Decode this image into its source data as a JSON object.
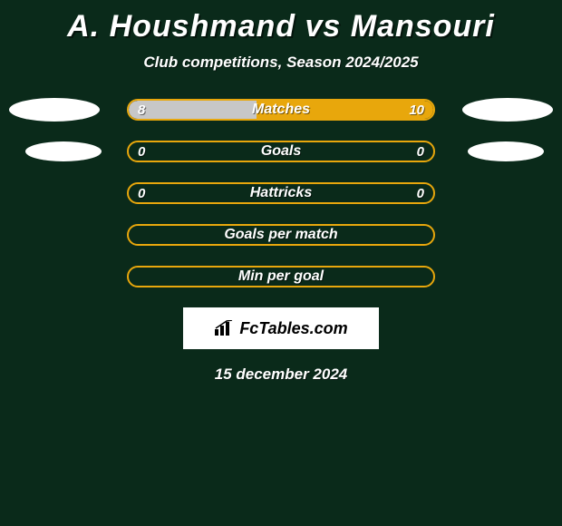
{
  "title": "A. Houshmand vs Mansouri",
  "subtitle": "Club competitions, Season 2024/2025",
  "date": "15 december 2024",
  "brand": "FcTables.com",
  "colors": {
    "background": "#0a2a1a",
    "bar_border": "#e8a70c",
    "fill_left": "#c7c7c7",
    "fill_right": "#e8a70c",
    "oval": "#ffffff",
    "text": "#ffffff"
  },
  "rows": [
    {
      "label": "Matches",
      "left_text": "8",
      "right_text": "10",
      "left_pct": 42,
      "right_pct": 58,
      "show_ovals": true,
      "show_values": true
    },
    {
      "label": "Goals",
      "left_text": "0",
      "right_text": "0",
      "left_pct": 0,
      "right_pct": 0,
      "show_ovals": true,
      "show_values": true
    },
    {
      "label": "Hattricks",
      "left_text": "0",
      "right_text": "0",
      "left_pct": 0,
      "right_pct": 0,
      "show_ovals": false,
      "show_values": true
    },
    {
      "label": "Goals per match",
      "left_text": "",
      "right_text": "",
      "left_pct": 0,
      "right_pct": 0,
      "show_ovals": false,
      "show_values": false
    },
    {
      "label": "Min per goal",
      "left_text": "",
      "right_text": "",
      "left_pct": 0,
      "right_pct": 0,
      "show_ovals": false,
      "show_values": false
    }
  ]
}
